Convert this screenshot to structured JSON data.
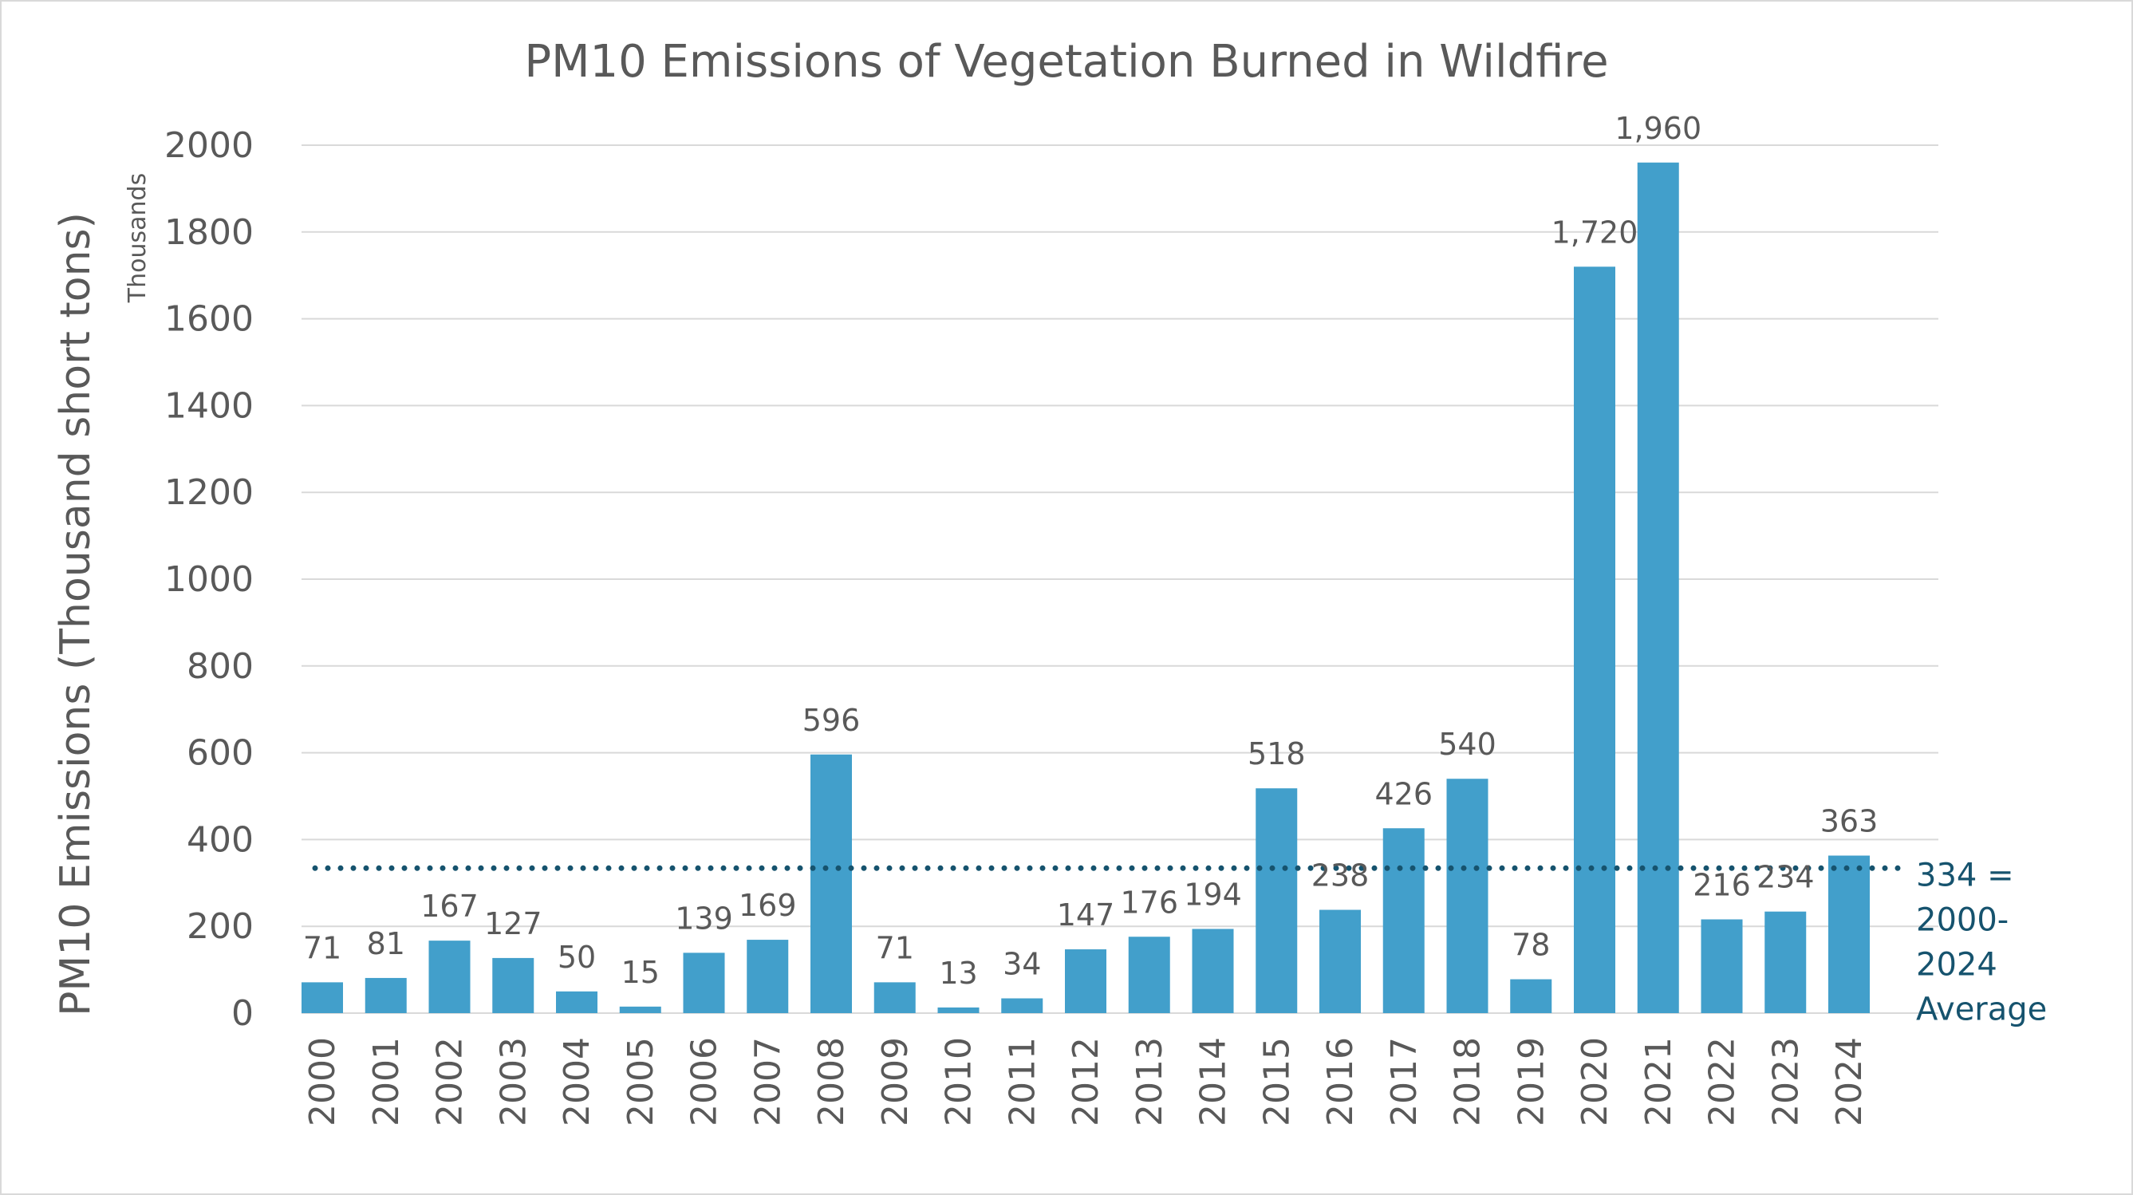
{
  "chart_data": {
    "type": "bar",
    "title": "PM10 Emissions of Vegetation Burned in Wildfire",
    "ylabel": "PM10 Emissions (Thousand short tons)",
    "y_units_label": "Thousands",
    "xlabel": "",
    "ylim": [
      0,
      2000
    ],
    "yticks": [
      0,
      200,
      400,
      600,
      800,
      1000,
      1200,
      1400,
      1600,
      1800,
      2000
    ],
    "grid": true,
    "categories": [
      "2000",
      "2001",
      "2002",
      "2003",
      "2004",
      "2005",
      "2006",
      "2007",
      "2008",
      "2009",
      "2010",
      "2011",
      "2012",
      "2013",
      "2014",
      "2015",
      "2016",
      "2017",
      "2018",
      "2019",
      "2020",
      "2021",
      "2022",
      "2023",
      "2024"
    ],
    "values": [
      71,
      81,
      167,
      127,
      50,
      15,
      139,
      169,
      596,
      71,
      13,
      34,
      147,
      176,
      194,
      518,
      238,
      426,
      540,
      78,
      1720,
      1960,
      216,
      234,
      363
    ],
    "data_labels": [
      "71",
      "81",
      "167",
      "127",
      "50",
      "15",
      "139",
      "169",
      "596",
      "71",
      "13",
      "34",
      "147",
      "176",
      "194",
      "518",
      "238",
      "426",
      "540",
      "78",
      "1,720",
      "1,960",
      "216",
      "234",
      "363"
    ],
    "average": {
      "value": 334,
      "label_lines": [
        "334 =",
        "2000-",
        "2024",
        "Average"
      ]
    },
    "colors": {
      "bar": "#429fcb",
      "average_line": "#16536e",
      "grid": "#d9d9d9",
      "text": "#595959"
    }
  }
}
